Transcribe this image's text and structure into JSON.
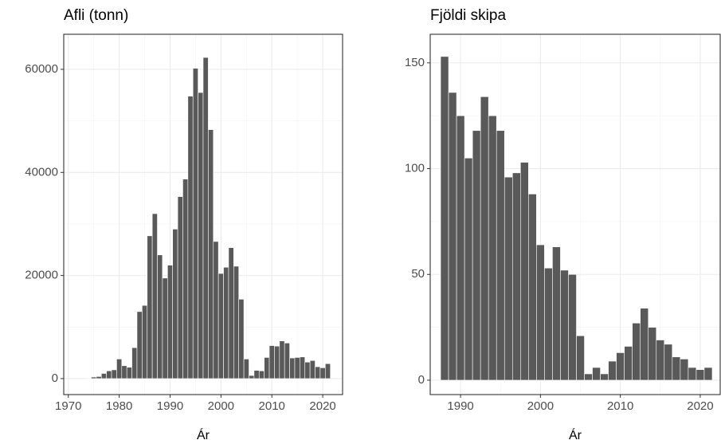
{
  "chart_data": [
    {
      "type": "bar",
      "title": "Afli (tonn)",
      "xlabel": "Ár",
      "color": "#595959",
      "grid": true,
      "x": [
        1974,
        1975,
        1976,
        1977,
        1978,
        1979,
        1980,
        1981,
        1982,
        1983,
        1984,
        1985,
        1986,
        1987,
        1988,
        1989,
        1990,
        1991,
        1992,
        1993,
        1994,
        1995,
        1996,
        1997,
        1998,
        1999,
        2000,
        2001,
        2002,
        2003,
        2004,
        2005,
        2006,
        2007,
        2008,
        2009,
        2010,
        2011,
        2012,
        2013,
        2014,
        2015,
        2016,
        2017,
        2018,
        2019,
        2020,
        2021
      ],
      "values": [
        100,
        300,
        400,
        1000,
        1500,
        1700,
        3800,
        2500,
        2200,
        6000,
        13000,
        14200,
        27700,
        32000,
        24000,
        19500,
        22000,
        29000,
        35300,
        38700,
        54800,
        60200,
        55500,
        62300,
        48300,
        26600,
        20400,
        21600,
        25400,
        21800,
        15400,
        3800,
        600,
        1600,
        1500,
        4100,
        6400,
        6300,
        7300,
        6900,
        4000,
        4100,
        4200,
        3200,
        3500,
        2300,
        2100,
        2900
      ],
      "xlim": [
        1969.1,
        2023.9
      ],
      "ylim": [
        -3100,
        66800
      ],
      "xticks": [
        1970,
        1980,
        1990,
        2000,
        2010,
        2020
      ],
      "yticks": [
        0,
        20000,
        40000,
        60000
      ]
    },
    {
      "type": "bar",
      "title": "Fjöldi skipa",
      "xlabel": "Ár",
      "color": "#595959",
      "grid": true,
      "x": [
        1988,
        1989,
        1990,
        1991,
        1992,
        1993,
        1994,
        1995,
        1996,
        1997,
        1998,
        1999,
        2000,
        2001,
        2002,
        2003,
        2004,
        2005,
        2006,
        2007,
        2008,
        2009,
        2010,
        2011,
        2012,
        2013,
        2014,
        2015,
        2016,
        2017,
        2018,
        2019,
        2020,
        2021
      ],
      "values": [
        153,
        136,
        125,
        105,
        118,
        134,
        125,
        118,
        96,
        98,
        103,
        88,
        64,
        53,
        63,
        52,
        50,
        21,
        3,
        6,
        3,
        9,
        13,
        16,
        27,
        34,
        25,
        19,
        17,
        11,
        10,
        6,
        5,
        6
      ],
      "xlim": [
        1986.2,
        2022.5
      ],
      "ylim": [
        -6.8,
        163.5
      ],
      "xticks": [
        1990,
        2000,
        2010,
        2020
      ],
      "yticks": [
        0,
        50,
        100,
        150
      ]
    }
  ]
}
